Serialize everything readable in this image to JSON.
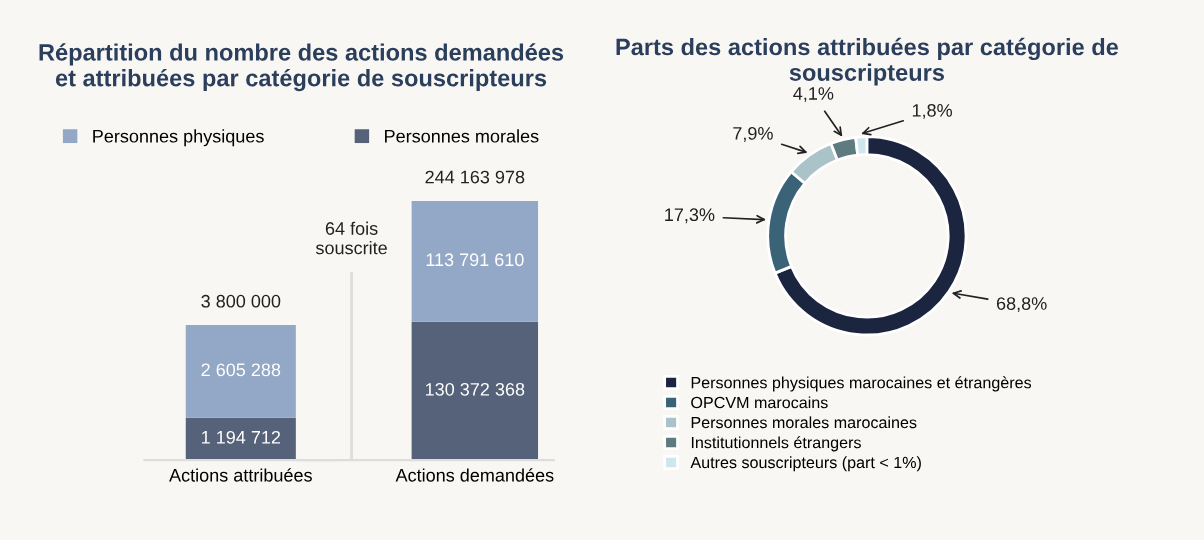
{
  "chart_data": [
    {
      "type": "bar",
      "title": "Répartition du nombre des actions demandées\net attribuées par catégorie de souscripteurs",
      "categories": [
        "Actions attribuées"
      ],
      "stacked": true,
      "legend": "top",
      "series": [
        {
          "name": "Personnes morales",
          "color": "#56627a",
          "values": [
            1194712
          ],
          "value_labels": [
            "1 194 712"
          ]
        },
        {
          "name": "Personnes physiques",
          "color": "#93a8c6",
          "values": [
            2605288
          ],
          "value_labels": [
            "2 605 288"
          ]
        }
      ],
      "totals": [
        "3 800 000"
      ]
    },
    {
      "type": "bar",
      "categories": [
        "Actions demandées"
      ],
      "stacked": true,
      "series": [
        {
          "color": "#56627a",
          "values": [
            130372368
          ],
          "value_labels": [
            "130 372 368"
          ]
        },
        {
          "color": "#93a8c6",
          "values": [
            113791610
          ],
          "value_labels": [
            "113 791 610"
          ]
        }
      ],
      "totals": [
        "244 163 978"
      ],
      "annotations": [
        "64 fois\nsouscrite"
      ]
    },
    {
      "type": "donut",
      "title": "Parts des actions attribuées par catégorie de\nsouscripteurs",
      "legend": "bottom",
      "categories": [
        "Personnes physiques marocaines et étrangères",
        "OPCVM marocains",
        "Personnes morales marocaines",
        "Institutionnels étrangers",
        "Autres souscripteurs (part < 1%)"
      ],
      "values": [
        68.8,
        17.3,
        7.9,
        4.1,
        1.8
      ],
      "value_labels": [
        "68,8%",
        "17,3%",
        "7,9%",
        "4,1%",
        "1,8%"
      ],
      "colors": [
        "#1c2540",
        "#3a6377",
        "#a9c3c8",
        "#5e7b80",
        "#cfe6ef"
      ]
    }
  ]
}
